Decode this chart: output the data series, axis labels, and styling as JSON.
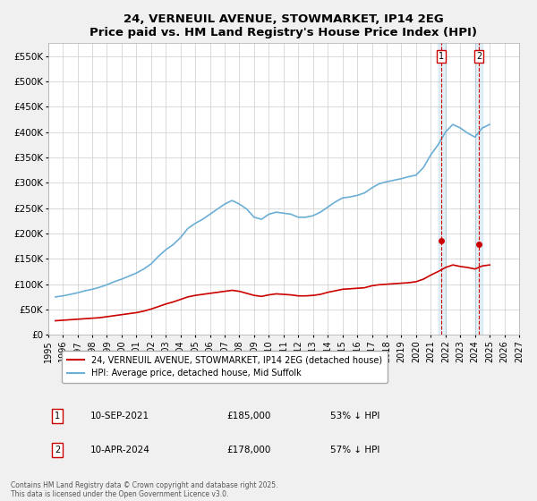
{
  "title": "24, VERNEUIL AVENUE, STOWMARKET, IP14 2EG",
  "subtitle": "Price paid vs. HM Land Registry's House Price Index (HPI)",
  "ylabel": "",
  "ylim": [
    0,
    575000
  ],
  "yticks": [
    0,
    50000,
    100000,
    150000,
    200000,
    250000,
    300000,
    350000,
    400000,
    450000,
    500000,
    550000
  ],
  "ytick_labels": [
    "£0",
    "£50K",
    "£100K",
    "£150K",
    "£200K",
    "£250K",
    "£300K",
    "£350K",
    "£400K",
    "£450K",
    "£500K",
    "£550K"
  ],
  "hpi_color": "#6baed6",
  "price_color": "#cc0000",
  "background_color": "#f0f0f0",
  "plot_bg_color": "#ffffff",
  "grid_color": "#cccccc",
  "annotation1": {
    "label": "1",
    "date": "10-SEP-2021",
    "price": "£185,000",
    "pct": "53% ↓ HPI",
    "x_year": 2021.69
  },
  "annotation2": {
    "label": "2",
    "date": "10-APR-2024",
    "price": "£178,000",
    "pct": "57% ↓ HPI",
    "x_year": 2024.28
  },
  "legend_entry1": "24, VERNEUIL AVENUE, STOWMARKET, IP14 2EG (detached house)",
  "legend_entry2": "HPI: Average price, detached house, Mid Suffolk",
  "footnote": "Contains HM Land Registry data © Crown copyright and database right 2025.\nThis data is licensed under the Open Government Licence v3.0.",
  "table_rows": [
    {
      "num": "1",
      "date": "10-SEP-2021",
      "price": "£185,000",
      "pct": "53% ↓ HPI"
    },
    {
      "num": "2",
      "date": "10-APR-2024",
      "price": "£178,000",
      "pct": "57% ↓ HPI"
    }
  ],
  "hpi_data_years": [
    1995.5,
    1996.0,
    1996.5,
    1997.0,
    1997.5,
    1998.0,
    1998.5,
    1999.0,
    1999.5,
    2000.0,
    2000.5,
    2001.0,
    2001.5,
    2002.0,
    2002.5,
    2003.0,
    2003.5,
    2004.0,
    2004.5,
    2005.0,
    2005.5,
    2006.0,
    2006.5,
    2007.0,
    2007.5,
    2008.0,
    2008.5,
    2009.0,
    2009.5,
    2010.0,
    2010.5,
    2011.0,
    2011.5,
    2012.0,
    2012.5,
    2013.0,
    2013.5,
    2014.0,
    2014.5,
    2015.0,
    2015.5,
    2016.0,
    2016.5,
    2017.0,
    2017.5,
    2018.0,
    2018.5,
    2019.0,
    2019.5,
    2020.0,
    2020.5,
    2021.0,
    2021.5,
    2022.0,
    2022.5,
    2023.0,
    2023.5,
    2024.0,
    2024.5,
    2025.0
  ],
  "hpi_data_values": [
    75000,
    77000,
    80000,
    83000,
    87000,
    90000,
    94000,
    99000,
    105000,
    110000,
    116000,
    122000,
    130000,
    140000,
    155000,
    168000,
    178000,
    192000,
    210000,
    220000,
    228000,
    238000,
    248000,
    258000,
    265000,
    258000,
    248000,
    232000,
    228000,
    238000,
    242000,
    240000,
    238000,
    232000,
    232000,
    235000,
    242000,
    252000,
    262000,
    270000,
    272000,
    275000,
    280000,
    290000,
    298000,
    302000,
    305000,
    308000,
    312000,
    315000,
    330000,
    355000,
    375000,
    400000,
    415000,
    408000,
    398000,
    390000,
    408000,
    415000
  ],
  "price_data_years": [
    1995.5,
    1996.0,
    1996.5,
    1997.0,
    1997.5,
    1998.0,
    1998.5,
    1999.0,
    1999.5,
    2000.0,
    2000.5,
    2001.0,
    2001.5,
    2002.0,
    2002.5,
    2003.0,
    2003.5,
    2004.0,
    2004.5,
    2005.0,
    2005.5,
    2006.0,
    2006.5,
    2007.0,
    2007.5,
    2008.0,
    2008.5,
    2009.0,
    2009.5,
    2010.0,
    2010.5,
    2011.0,
    2011.5,
    2012.0,
    2012.5,
    2013.0,
    2013.5,
    2014.0,
    2014.5,
    2015.0,
    2015.5,
    2016.0,
    2016.5,
    2017.0,
    2017.5,
    2018.0,
    2018.5,
    2019.0,
    2019.5,
    2020.0,
    2020.5,
    2021.0,
    2021.5,
    2022.0,
    2022.5,
    2023.0,
    2023.5,
    2024.0,
    2024.5,
    2025.0
  ],
  "price_data_values": [
    28000,
    29000,
    30000,
    31000,
    32000,
    33000,
    34000,
    36000,
    38000,
    40000,
    42000,
    44000,
    47000,
    51000,
    56000,
    61000,
    65000,
    70000,
    75000,
    78000,
    80000,
    82000,
    84000,
    86000,
    88000,
    86000,
    82000,
    78000,
    76000,
    79000,
    81000,
    80000,
    79000,
    77000,
    77000,
    78000,
    80000,
    84000,
    87000,
    90000,
    91000,
    92000,
    93000,
    97000,
    99000,
    100000,
    101000,
    102000,
    103000,
    105000,
    110000,
    118000,
    125000,
    133000,
    138000,
    135000,
    133000,
    130000,
    136000,
    138000
  ],
  "xmin": 1995,
  "xmax": 2027,
  "xticks": [
    1995,
    1996,
    1997,
    1998,
    1999,
    2000,
    2001,
    2002,
    2003,
    2004,
    2005,
    2006,
    2007,
    2008,
    2009,
    2010,
    2011,
    2012,
    2013,
    2014,
    2015,
    2016,
    2017,
    2018,
    2019,
    2020,
    2021,
    2022,
    2023,
    2024,
    2025,
    2026,
    2027
  ],
  "shade_x1_start": 2021.5,
  "shade_x1_end": 2022.0,
  "shade_x2_start": 2024.0,
  "shade_x2_end": 2024.5,
  "marker1_x": 2021.69,
  "marker1_y": 185000,
  "marker2_x": 2024.28,
  "marker2_y": 178000
}
